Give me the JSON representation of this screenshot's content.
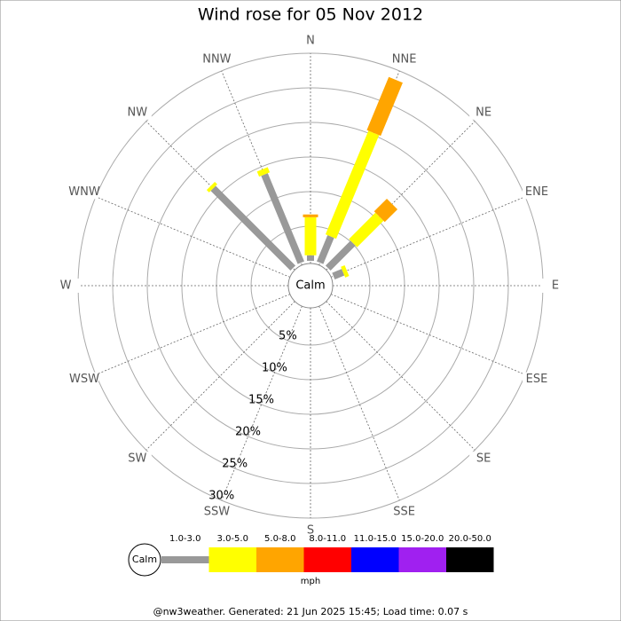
{
  "chart_data": {
    "type": "windrose",
    "title": "Wind rose for 05 Nov 2012",
    "categories": [
      "N",
      "NNE",
      "NE",
      "ENE",
      "E",
      "ESE",
      "SE",
      "SSE",
      "S",
      "SSW",
      "SW",
      "WSW",
      "W",
      "WNW",
      "NW",
      "NNW"
    ],
    "series": [
      {
        "name": "1.0-3.0",
        "color": "#999999",
        "values": [
          0.8,
          4.1,
          5.1,
          1.5,
          0,
          0,
          0,
          0,
          0,
          0,
          0,
          0,
          0,
          0,
          16.3,
          13.8
        ]
      },
      {
        "name": "3.0-5.0",
        "color": "#ffff00",
        "values": [
          5.5,
          16.2,
          5.4,
          0.6,
          0,
          0,
          0,
          0,
          0,
          0,
          0,
          0,
          0,
          0,
          0.5,
          0.8
        ]
      },
      {
        "name": "5.0-8.0",
        "color": "#ffa500",
        "values": [
          0.4,
          8.3,
          2.6,
          0,
          0,
          0,
          0,
          0,
          0,
          0,
          0,
          0,
          0,
          0,
          0,
          0
        ]
      },
      {
        "name": "8.0-11.0",
        "color": "#ff0000",
        "values": [
          0,
          0,
          0,
          0,
          0,
          0,
          0,
          0,
          0,
          0,
          0,
          0,
          0,
          0,
          0,
          0
        ]
      },
      {
        "name": "11.0-15.0",
        "color": "#0000ff",
        "values": [
          0,
          0,
          0,
          0,
          0,
          0,
          0,
          0,
          0,
          0,
          0,
          0,
          0,
          0,
          0,
          0
        ]
      },
      {
        "name": "15.0-20.0",
        "color": "#a020f0",
        "values": [
          0,
          0,
          0,
          0,
          0,
          0,
          0,
          0,
          0,
          0,
          0,
          0,
          0,
          0,
          0,
          0
        ]
      },
      {
        "name": "20.0-50.0",
        "color": "#000000",
        "values": [
          0,
          0,
          0,
          0,
          0,
          0,
          0,
          0,
          0,
          0,
          0,
          0,
          0,
          0,
          0,
          0
        ]
      }
    ],
    "rlim": [
      0,
      30
    ],
    "rticks": [
      {
        "value": 5,
        "label": "5%"
      },
      {
        "value": 10,
        "label": "10%"
      },
      {
        "value": 15,
        "label": "15%"
      },
      {
        "value": 20,
        "label": "20%"
      },
      {
        "value": 25,
        "label": "25%"
      },
      {
        "value": 30,
        "label": "30%"
      }
    ],
    "calm_label": "Calm",
    "legend_unit": "mph"
  },
  "footer": "@nw3weather. Generated: 21 Jun 2025 15:45; Load time: 0.07 s"
}
